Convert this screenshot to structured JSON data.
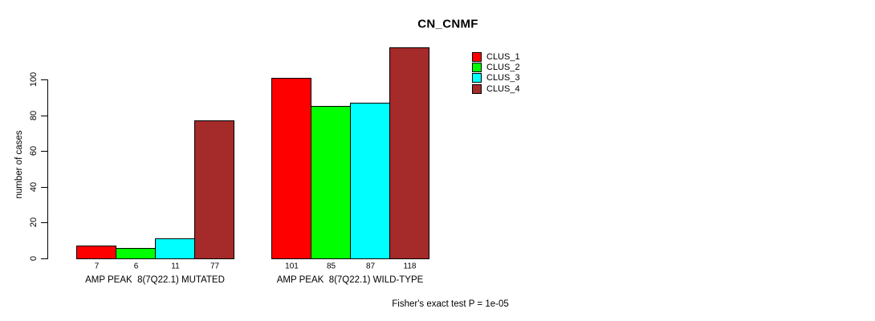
{
  "chart_data": {
    "type": "bar",
    "title": "CN_CNMF",
    "xlabel": "",
    "ylabel": "number of cases",
    "ylim": [
      0,
      100
    ],
    "yticks": [
      0,
      20,
      40,
      60,
      80,
      100
    ],
    "grid": false,
    "legend_position": "top-right-inside",
    "categories": [
      "AMP PEAK  8(7Q22.1) MUTATED",
      "AMP PEAK  8(7Q22.1) WILD-TYPE"
    ],
    "series": [
      {
        "name": "CLUS_1",
        "color": "#ff0000",
        "values": [
          7,
          101
        ]
      },
      {
        "name": "CLUS_2",
        "color": "#00ff00",
        "values": [
          6,
          85
        ]
      },
      {
        "name": "CLUS_3",
        "color": "#00ffff",
        "values": [
          11,
          87
        ]
      },
      {
        "name": "CLUS_4",
        "color": "#a52a2a",
        "values": [
          77,
          118
        ]
      }
    ],
    "groups": [
      {
        "label": "AMP PEAK  8(7Q22.1) MUTATED",
        "values": [
          7,
          6,
          11,
          77
        ]
      },
      {
        "label": "AMP PEAK  8(7Q22.1) WILD-TYPE",
        "values": [
          101,
          85,
          87,
          118
        ]
      }
    ],
    "bar_value_labels_shown": true,
    "caption": "Fisher's exact test P = 1e-05",
    "axis_color": "#000000",
    "background_color": "#ffffff"
  }
}
